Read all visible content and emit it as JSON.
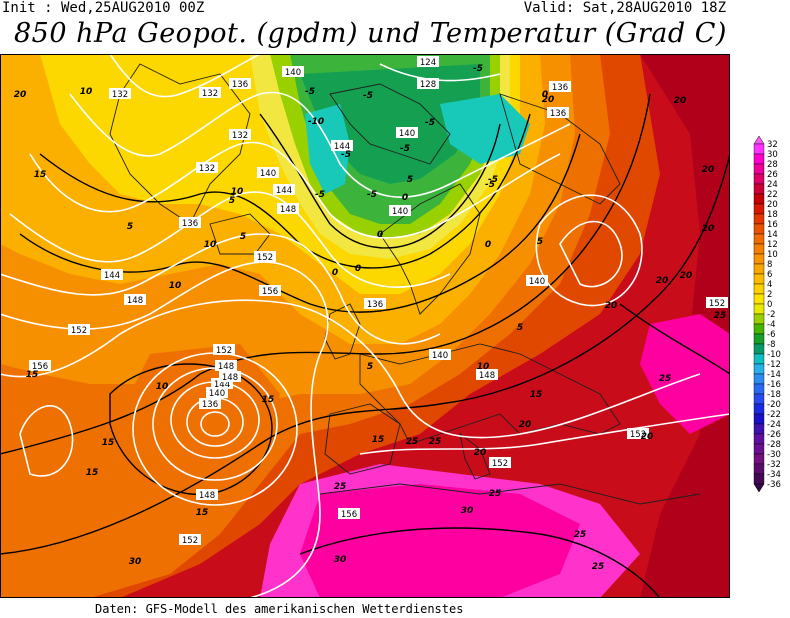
{
  "header": {
    "init_text": "Init : Wed,25AUG2010 00Z",
    "valid_text": "Valid: Sat,28AUG2010 18Z",
    "title": "850 hPa Geopot. (gpdm) und Temperatur (Grad C)"
  },
  "footer": {
    "source": "Daten: GFS-Modell des amerikanischen Wetterdienstes"
  },
  "legend": {
    "values": [
      "32",
      "30",
      "28",
      "26",
      "24",
      "22",
      "20",
      "18",
      "16",
      "14",
      "12",
      "10",
      "8",
      "6",
      "4",
      "2",
      "0",
      "-2",
      "-4",
      "-6",
      "-8",
      "-10",
      "-12",
      "-14",
      "-16",
      "-18",
      "-20",
      "-22",
      "-24",
      "-26",
      "-28",
      "-30",
      "-32",
      "-34",
      "-36"
    ],
    "colors": [
      "#ff33ff",
      "#ff00cc",
      "#ee0099",
      "#dd0066",
      "#cc0033",
      "#c40000",
      "#d81800",
      "#e23800",
      "#ea5400",
      "#f06c00",
      "#f48000",
      "#f89400",
      "#faa800",
      "#fcbc00",
      "#fdd000",
      "#fde400",
      "#e8e800",
      "#9ad000",
      "#46b400",
      "#16a02a",
      "#0a9a6a",
      "#10c0c0",
      "#28b0e8",
      "#2c8cf0",
      "#2a6af0",
      "#2a4af0",
      "#1a2ae0",
      "#1a10c8",
      "#4010b0",
      "#6010a0",
      "#6a1090",
      "#72107e",
      "#5a0c6a",
      "#440854"
    ],
    "arrow_top_color": "#ff55ff",
    "arrow_bottom_color": "#300848"
  },
  "map": {
    "colors": {
      "land_hot": "#c80c1a",
      "hot_orange": "#e04800",
      "orange": "#ee7000",
      "light_orange": "#f79000",
      "yellow_orange": "#fbb000",
      "yellow": "#fdd800",
      "pale_yellow": "#f2e640",
      "green_light": "#98d000",
      "green": "#3cb43c",
      "green_dark": "#14a050",
      "cyan": "#18c8b8",
      "magenta": "#ff00a0",
      "magenta_light": "#ff33cc",
      "deep_red": "#b0001a",
      "contour_geo": "#ffffff",
      "contour_temp": "#000000",
      "coast": "#202020"
    },
    "geopotential_labels": [
      "124",
      "128",
      "132",
      "132",
      "132",
      "132",
      "136",
      "136",
      "136",
      "136",
      "136",
      "136",
      "140",
      "140",
      "140",
      "140",
      "140",
      "140",
      "140",
      "144",
      "144",
      "144",
      "144",
      "148",
      "148",
      "148",
      "148",
      "148",
      "148",
      "152",
      "152",
      "152",
      "152",
      "152",
      "152",
      "152",
      "156",
      "156",
      "156"
    ],
    "temperature_labels": [
      "-5",
      "-5",
      "-5",
      "-5",
      "-5",
      "-10",
      "-5",
      "-5",
      "-5",
      "-5",
      "-5",
      "0",
      "0",
      "0",
      "0",
      "0",
      "0",
      "5",
      "5",
      "5",
      "5",
      "5",
      "5",
      "5",
      "10",
      "10",
      "10",
      "10",
      "10",
      "10",
      "15",
      "15",
      "15",
      "15",
      "15",
      "15",
      "15",
      "15",
      "20",
      "20",
      "20",
      "20",
      "20",
      "20",
      "20",
      "20",
      "20",
      "20",
      "20",
      "25",
      "25",
      "25",
      "25",
      "25",
      "25",
      "25",
      "25",
      "30",
      "30",
      "30"
    ]
  }
}
